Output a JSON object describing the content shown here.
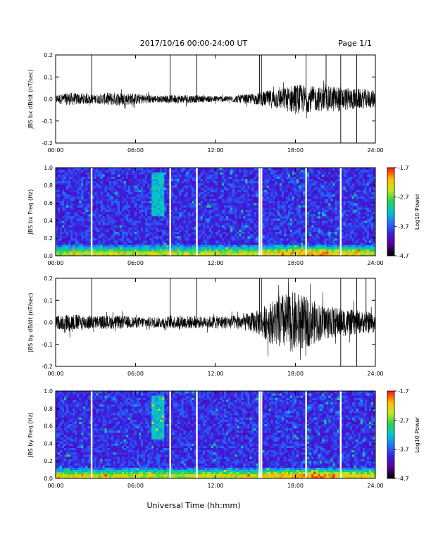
{
  "header": {
    "title": "2017/10/16  00:00-24:00 UT",
    "page": "Page 1/1"
  },
  "footer": {
    "xlabel": "Universal Time (hh:mm)"
  },
  "colors": {
    "trace": "#000000",
    "frame": "#000000",
    "colormap": [
      "#000000",
      "#5a009c",
      "#3c1ee0",
      "#1e78ff",
      "#00c8d2",
      "#28d250",
      "#c8e61e",
      "#ffbe00",
      "#ff1e00"
    ]
  },
  "chart_data": [
    {
      "type": "line",
      "ylabel": "JBS bx dB/dt (nT/sec)",
      "xlim": [
        0,
        24
      ],
      "ylim": [
        -0.2,
        0.2
      ],
      "x_ticks": [
        "00:00",
        "06:00",
        "12:00",
        "18:00",
        "24:00"
      ],
      "y_ticks": [
        "0.2",
        "0.1",
        "0.0",
        "-0.1",
        "-0.2"
      ],
      "y_tick_values": [
        0.2,
        0.1,
        0.0,
        -0.1,
        -0.2
      ],
      "envelope": {
        "hours": [
          0,
          1,
          2,
          3,
          4,
          5,
          6,
          7,
          8,
          9,
          10,
          11,
          12,
          13,
          14,
          15,
          16,
          17,
          18,
          19,
          20,
          21,
          22,
          23,
          24
        ],
        "amplitude": [
          0.02,
          0.03,
          0.025,
          0.02,
          0.03,
          0.03,
          0.025,
          0.02,
          0.015,
          0.02,
          0.02,
          0.015,
          0.015,
          0.015,
          0.02,
          0.025,
          0.04,
          0.05,
          0.07,
          0.06,
          0.055,
          0.06,
          0.05,
          0.045,
          0.04
        ]
      },
      "spikes": [
        2.7,
        8.6,
        10.6,
        15.3,
        15.45,
        18.8,
        20.3,
        21.4,
        22.6
      ],
      "deep_spikes": [
        21.4,
        22.6
      ]
    },
    {
      "type": "heatmap",
      "ylabel": "JBS bx Freq (Hz)",
      "colorbar_label": "Log10 Power",
      "colorbar_ticks": [
        "-1.7",
        "-2.7",
        "-3.7",
        "-4.7"
      ],
      "colorbar_tick_values": [
        -1.7,
        -2.7,
        -3.7,
        -4.7
      ],
      "xlim": [
        0,
        24
      ],
      "ylim": [
        0,
        1.0
      ],
      "x_ticks": [
        "00:00",
        "06:00",
        "12:00",
        "18:00",
        "24:00"
      ],
      "y_ticks": [
        "1.0",
        "0.8",
        "0.6",
        "0.4",
        "0.2",
        "0.0"
      ],
      "y_tick_values": [
        1.0,
        0.8,
        0.6,
        0.4,
        0.2,
        0.0
      ],
      "gaps": [
        2.7,
        8.6,
        10.6,
        15.3,
        15.45,
        18.8,
        21.4
      ]
    },
    {
      "type": "line",
      "ylabel": "JBS by dB/dt (nT/sec)",
      "xlim": [
        0,
        24
      ],
      "ylim": [
        -0.2,
        0.2
      ],
      "x_ticks": [
        "00:00",
        "06:00",
        "12:00",
        "18:00",
        "24:00"
      ],
      "y_ticks": [
        "0.2",
        "0.1",
        "0.0",
        "-0.1",
        "-0.2"
      ],
      "y_tick_values": [
        0.2,
        0.1,
        0.0,
        -0.1,
        -0.2
      ],
      "envelope": {
        "hours": [
          0,
          1,
          2,
          3,
          4,
          5,
          6,
          7,
          8,
          9,
          10,
          11,
          12,
          13,
          14,
          15,
          16,
          17,
          18,
          19,
          20,
          21,
          22,
          23,
          24
        ],
        "amplitude": [
          0.03,
          0.04,
          0.035,
          0.03,
          0.03,
          0.03,
          0.025,
          0.025,
          0.025,
          0.03,
          0.03,
          0.025,
          0.03,
          0.03,
          0.035,
          0.05,
          0.09,
          0.13,
          0.14,
          0.11,
          0.08,
          0.07,
          0.06,
          0.05,
          0.05
        ]
      },
      "spikes": [
        2.7,
        8.6,
        10.6,
        15.3,
        15.45,
        21.4,
        22.6,
        23.3
      ],
      "deep_spikes": [
        21.4,
        22.6
      ]
    },
    {
      "type": "heatmap",
      "ylabel": "JBS by Freq (Hz)",
      "colorbar_label": "Log10 Power",
      "colorbar_ticks": [
        "-1.7",
        "-2.7",
        "-3.7",
        "-4.7"
      ],
      "colorbar_tick_values": [
        -1.7,
        -2.7,
        -3.7,
        -4.7
      ],
      "xlim": [
        0,
        24
      ],
      "ylim": [
        0,
        1.0
      ],
      "x_ticks": [
        "00:00",
        "06:00",
        "12:00",
        "18:00",
        "24:00"
      ],
      "y_ticks": [
        "1.0",
        "0.8",
        "0.6",
        "0.4",
        "0.2",
        "0.0"
      ],
      "y_tick_values": [
        1.0,
        0.8,
        0.6,
        0.4,
        0.2,
        0.0
      ],
      "gaps": [
        2.7,
        8.6,
        10.6,
        15.3,
        15.45,
        18.8,
        21.4
      ]
    }
  ]
}
